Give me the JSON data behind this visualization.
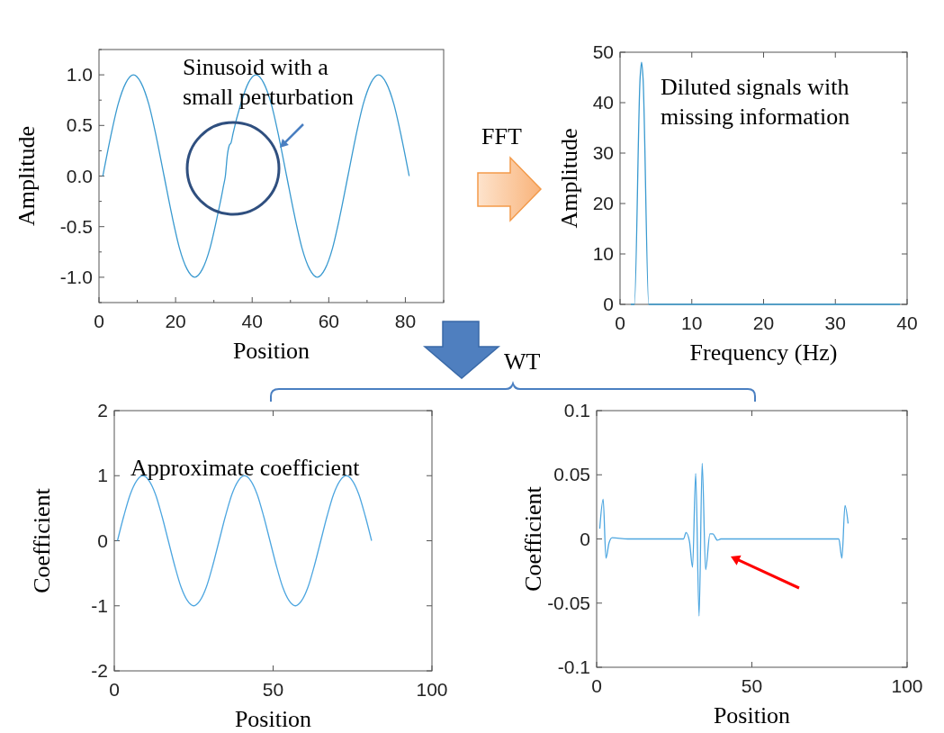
{
  "chart_data": [
    {
      "type": "line",
      "xlabel": "Position",
      "ylabel": "Amplitude",
      "annotations": [
        "Sinusoid with a small perturbation"
      ],
      "color": "#3a9ad0",
      "xlim": [
        0,
        90
      ],
      "ylim": [
        -1.25,
        1.25
      ],
      "xticks": [
        0,
        {
          "value": 10,
          "label": null
        },
        20,
        {
          "value": 30,
          "label": null
        },
        40,
        {
          "value": 50,
          "label": null
        },
        60,
        {
          "value": 70,
          "label": null
        },
        80,
        {
          "value": 90,
          "label": null
        }
      ],
      "yticks": [
        {
          "value": -1.25,
          "label": null
        },
        {
          "value": -1,
          "label": "-1.0"
        },
        {
          "value": -0.75,
          "label": null
        },
        -0.5,
        {
          "value": -0.25,
          "label": null
        },
        {
          "value": 0,
          "label": "0.0"
        },
        {
          "value": 0.25,
          "label": null
        },
        0.5,
        {
          "value": 0.75,
          "label": null
        },
        {
          "value": 1,
          "label": "1.0"
        },
        {
          "value": 1.25,
          "label": null
        }
      ],
      "x": [
        1,
        3,
        5,
        7,
        9,
        11,
        13,
        15,
        17,
        19,
        21,
        23,
        25,
        27,
        29,
        31,
        32,
        32.5,
        33,
        33.5,
        34,
        34.5,
        35,
        37,
        39,
        41,
        43,
        45,
        47,
        49,
        51,
        53,
        55,
        57,
        59,
        61,
        63,
        65,
        67,
        69,
        71,
        73,
        75,
        77,
        79,
        81
      ],
      "values": [
        0,
        0.38,
        0.71,
        0.92,
        1,
        0.92,
        0.71,
        0.38,
        0,
        -0.38,
        -0.71,
        -0.92,
        -1,
        -0.92,
        -0.71,
        -0.38,
        -0.2,
        -0.1,
        0,
        0.2,
        0.3,
        0.33,
        0.42,
        0.71,
        0.92,
        1,
        0.92,
        0.71,
        0.38,
        0,
        -0.38,
        -0.71,
        -0.92,
        -1,
        -0.92,
        -0.71,
        -0.38,
        0,
        0.38,
        0.71,
        0.92,
        1,
        0.92,
        0.71,
        0.38,
        0
      ]
    },
    {
      "type": "line",
      "xlabel": "Frequency (Hz)",
      "ylabel": "Amplitude",
      "annotations": [
        "Diluted signals with missing information",
        "FFT"
      ],
      "color": "#3a9ad0",
      "xlim": [
        0,
        40
      ],
      "ylim": [
        0,
        50
      ],
      "xticks": [
        0,
        10,
        20,
        30,
        40
      ],
      "yticks": [
        0,
        10,
        20,
        30,
        40,
        50
      ],
      "x": [
        1.5,
        2,
        2.8,
        3,
        3.2,
        4,
        10,
        20,
        30,
        39
      ],
      "values": [
        0,
        0,
        45,
        48,
        45,
        0,
        0,
        0,
        0,
        0
      ]
    },
    {
      "type": "line",
      "xlabel": "Position",
      "ylabel": "Coefficient",
      "annotations": [
        "Approximate coefficient",
        "WT"
      ],
      "color": "#4da6e0",
      "xlim": [
        0,
        100
      ],
      "ylim": [
        -2,
        2
      ],
      "xticks": [
        0,
        50,
        100
      ],
      "yticks": [
        -2,
        -1,
        0,
        1,
        2
      ],
      "x": [
        1,
        3,
        5,
        7,
        9,
        11,
        13,
        15,
        17,
        19,
        21,
        23,
        25,
        27,
        29,
        31,
        33,
        35,
        37,
        39,
        41,
        43,
        45,
        47,
        49,
        51,
        53,
        55,
        57,
        59,
        61,
        63,
        65,
        67,
        69,
        71,
        73,
        75,
        77,
        79,
        81
      ],
      "values": [
        0,
        0.38,
        0.71,
        0.92,
        1,
        0.92,
        0.71,
        0.38,
        0,
        -0.38,
        -0.71,
        -0.92,
        -1,
        -0.92,
        -0.71,
        -0.38,
        0,
        0.38,
        0.71,
        0.92,
        1,
        0.92,
        0.71,
        0.38,
        0,
        -0.38,
        -0.71,
        -0.92,
        -1,
        -0.92,
        -0.71,
        -0.38,
        0,
        0.38,
        0.71,
        0.92,
        1,
        0.92,
        0.71,
        0.38,
        0
      ]
    },
    {
      "type": "line",
      "xlabel": "Position",
      "ylabel": "Coefficient",
      "color": "#4da6e0",
      "xlim": [
        0,
        100
      ],
      "ylim": [
        -0.1,
        0.1
      ],
      "xticks": [
        0,
        50,
        100
      ],
      "yticks": [
        -0.1,
        -0.05,
        0,
        0.05,
        0.1
      ],
      "x": [
        1,
        2.1,
        3,
        4,
        5,
        10,
        20,
        28,
        28.8,
        29.9,
        30.9,
        31.9,
        33,
        34,
        35.1,
        36.5,
        37.4,
        38.9,
        40,
        50,
        60,
        70,
        78,
        79,
        80,
        81
      ],
      "values": [
        0.008,
        0.031,
        -0.015,
        -0.003,
        0.001,
        0,
        0,
        0,
        0.005,
        -0.002,
        -0.022,
        0.051,
        -0.06,
        0.059,
        -0.024,
        0.004,
        0.004,
        -0.001,
        0,
        0,
        0,
        0,
        0,
        -0.015,
        0.026,
        0.012
      ]
    }
  ]
}
